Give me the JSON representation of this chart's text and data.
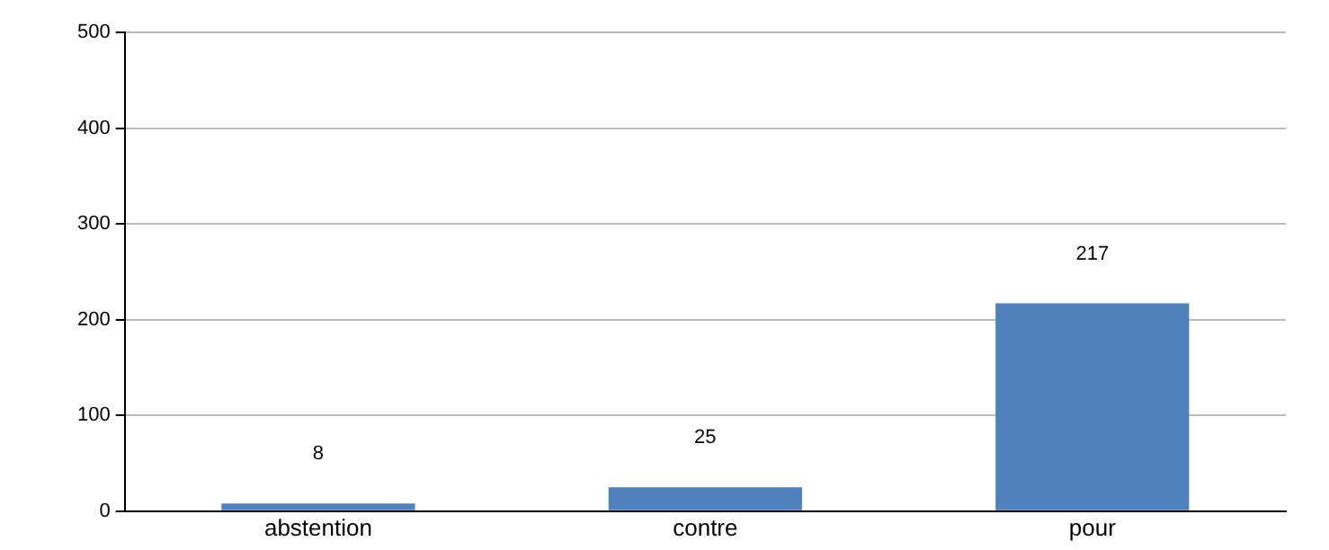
{
  "chart_data": {
    "type": "bar",
    "categories": [
      "abstention",
      "contre",
      "pour"
    ],
    "values": [
      8,
      25,
      217
    ],
    "color": "#4f81bd",
    "ylim": [
      0,
      500
    ],
    "yticks": [
      0,
      100,
      200,
      300,
      400,
      500
    ],
    "grid": "y",
    "data_labels": true
  }
}
